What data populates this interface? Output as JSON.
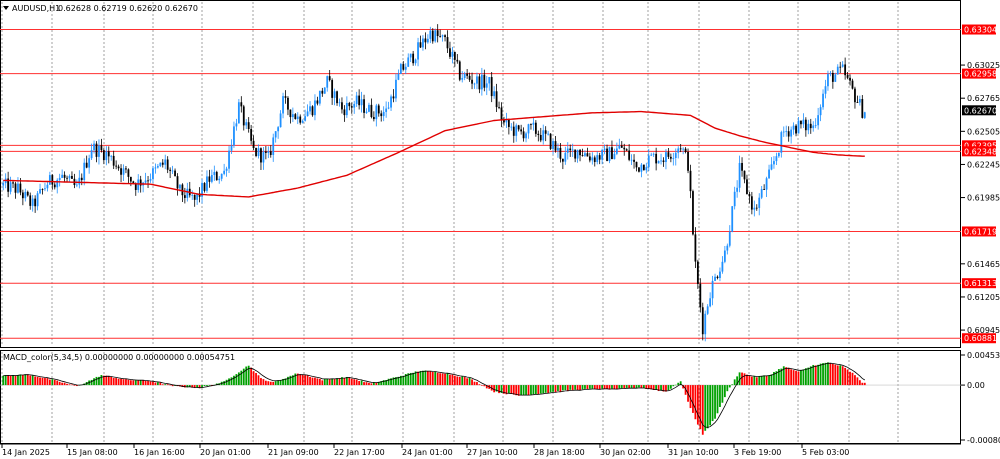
{
  "header": {
    "symbol": "AUDUSD,H1",
    "ohlc": "0.62628 0.62719 0.62620 0.62670"
  },
  "indicator": {
    "label": "MACD_color(5,34,5) 0.00000000 0.00000000 0.00054751"
  },
  "colors": {
    "bull": "#1e90ff",
    "bear": "#000000",
    "ma": "#e00000",
    "level": "#ff3030",
    "hist_up": "#00a000",
    "hist_down": "#ff0000",
    "signal": "#000000",
    "grid": "#7a7a7a",
    "badge_red": "#ff0000",
    "badge_dark": "#000000"
  },
  "chart_data": [
    {
      "type": "candlestick",
      "pane": "price",
      "title": "AUDUSD,H1",
      "ylim": [
        0.6082,
        0.6352
      ],
      "yticks": [
        "0.63025",
        "0.62765",
        "0.62505",
        "0.62245",
        "0.61985",
        "0.61465",
        "0.61205",
        "0.60945"
      ],
      "xticks": [
        "14 Jan 2025",
        "15 Jan 08:00",
        "16 Jan 16:00",
        "20 Jan 01:00",
        "21 Jan 09:00",
        "22 Jan 17:00",
        "24 Jan 01:00",
        "27 Jan 10:00",
        "28 Jan 18:00",
        "30 Jan 02:00",
        "31 Jan 10:00",
        "3 Feb 19:00",
        "5 Feb 03:00"
      ],
      "levels": [
        "0.63304",
        "0.62958",
        "0.62395",
        "0.62348",
        "0.61719",
        "0.61313",
        "0.60881"
      ],
      "last_price": "0.62670",
      "close_path": [
        [
          0,
          0.6208
        ],
        [
          6,
          0.6205
        ],
        [
          12,
          0.6192
        ],
        [
          18,
          0.621
        ],
        [
          24,
          0.6215
        ],
        [
          30,
          0.6205
        ],
        [
          36,
          0.6238
        ],
        [
          42,
          0.6233
        ],
        [
          48,
          0.6221
        ],
        [
          54,
          0.6209
        ],
        [
          60,
          0.6216
        ],
        [
          66,
          0.6226
        ],
        [
          72,
          0.6203
        ],
        [
          78,
          0.6196
        ],
        [
          84,
          0.6213
        ],
        [
          90,
          0.6218
        ],
        [
          96,
          0.627
        ],
        [
          102,
          0.6235
        ],
        [
          108,
          0.6229
        ],
        [
          114,
          0.6273
        ],
        [
          120,
          0.6261
        ],
        [
          126,
          0.6269
        ],
        [
          132,
          0.6289
        ],
        [
          138,
          0.6268
        ],
        [
          144,
          0.6273
        ],
        [
          150,
          0.6266
        ],
        [
          156,
          0.6266
        ],
        [
          162,
          0.6298
        ],
        [
          168,
          0.6312
        ],
        [
          174,
          0.6328
        ],
        [
          180,
          0.6321
        ],
        [
          186,
          0.6295
        ],
        [
          192,
          0.629
        ],
        [
          198,
          0.6288
        ],
        [
          204,
          0.6256
        ],
        [
          210,
          0.6249
        ],
        [
          216,
          0.6252
        ],
        [
          222,
          0.6244
        ],
        [
          228,
          0.623
        ],
        [
          234,
          0.6236
        ],
        [
          240,
          0.623
        ],
        [
          246,
          0.6232
        ],
        [
          252,
          0.6238
        ],
        [
          258,
          0.6222
        ],
        [
          264,
          0.623
        ],
        [
          270,
          0.623
        ],
        [
          276,
          0.624
        ],
        [
          279,
          0.6225
        ],
        [
          282,
          0.6145
        ],
        [
          285,
          0.6097
        ],
        [
          288,
          0.6125
        ],
        [
          294,
          0.6155
        ],
        [
          300,
          0.622
        ],
        [
          306,
          0.6188
        ],
        [
          312,
          0.6215
        ],
        [
          318,
          0.625
        ],
        [
          324,
          0.6255
        ],
        [
          330,
          0.6254
        ],
        [
          336,
          0.6292
        ],
        [
          342,
          0.6298
        ],
        [
          346,
          0.6282
        ],
        [
          350,
          0.6267
        ]
      ],
      "ma_path": [
        [
          0,
          0.6212
        ],
        [
          20,
          0.6211
        ],
        [
          40,
          0.621
        ],
        [
          60,
          0.6209
        ],
        [
          80,
          0.6201
        ],
        [
          100,
          0.6199
        ],
        [
          120,
          0.6206
        ],
        [
          140,
          0.6216
        ],
        [
          160,
          0.6233
        ],
        [
          180,
          0.6251
        ],
        [
          200,
          0.6259
        ],
        [
          220,
          0.6262
        ],
        [
          240,
          0.6265
        ],
        [
          260,
          0.6266
        ],
        [
          280,
          0.6263
        ],
        [
          290,
          0.6253
        ],
        [
          300,
          0.6247
        ],
        [
          310,
          0.6242
        ],
        [
          320,
          0.6238
        ],
        [
          330,
          0.6234
        ],
        [
          340,
          0.6232
        ],
        [
          350,
          0.6231
        ]
      ]
    },
    {
      "type": "histogram",
      "pane": "macd",
      "title": "MACD_color(5,34,5)",
      "ylim": [
        -0.00086,
        0.0005
      ],
      "yticks": [
        "0.0045392",
        "0.00",
        "-0.00080563"
      ],
      "hist_path": [
        [
          0,
          0.00014
        ],
        [
          10,
          0.00016
        ],
        [
          20,
          8e-05
        ],
        [
          30,
          -2e-05
        ],
        [
          40,
          0.00015
        ],
        [
          50,
          8e-05
        ],
        [
          60,
          6e-05
        ],
        [
          70,
          -2e-05
        ],
        [
          80,
          -4e-05
        ],
        [
          90,
          5e-05
        ],
        [
          100,
          0.0003
        ],
        [
          105,
          0.0001
        ],
        [
          110,
          4e-05
        ],
        [
          120,
          0.00018
        ],
        [
          130,
          8e-05
        ],
        [
          140,
          0.00012
        ],
        [
          150,
          2e-05
        ],
        [
          160,
          0.00012
        ],
        [
          170,
          0.00022
        ],
        [
          180,
          0.00018
        ],
        [
          190,
          0.0001
        ],
        [
          200,
          -0.0001
        ],
        [
          210,
          -0.00016
        ],
        [
          220,
          -0.00012
        ],
        [
          230,
          -8e-05
        ],
        [
          240,
          -6e-05
        ],
        [
          250,
          -6e-05
        ],
        [
          260,
          -4e-05
        ],
        [
          270,
          -0.0001
        ],
        [
          276,
          6e-05
        ],
        [
          280,
          -0.00035
        ],
        [
          285,
          -0.00075
        ],
        [
          290,
          -0.0005
        ],
        [
          295,
          -0.0001
        ],
        [
          300,
          0.0002
        ],
        [
          306,
          0.00012
        ],
        [
          312,
          0.00015
        ],
        [
          318,
          0.00028
        ],
        [
          324,
          0.0002
        ],
        [
          330,
          0.0003
        ],
        [
          336,
          0.00034
        ],
        [
          342,
          0.00028
        ],
        [
          346,
          0.00018
        ],
        [
          350,
          4e-05
        ]
      ]
    }
  ]
}
